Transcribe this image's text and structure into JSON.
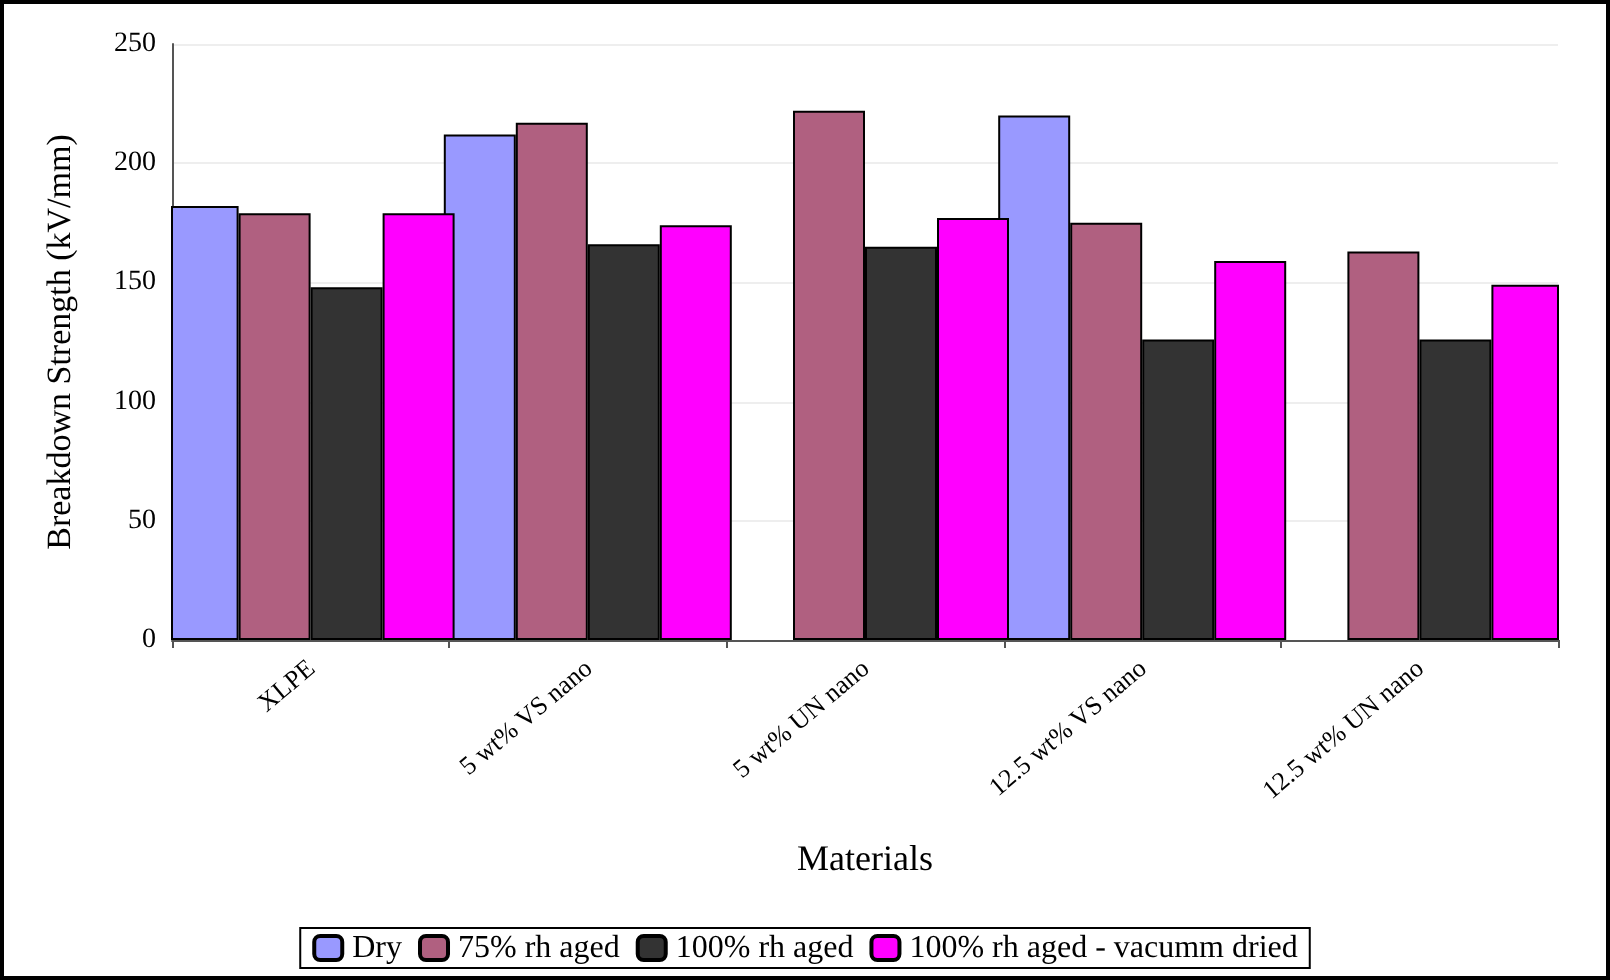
{
  "chart_data": {
    "type": "bar",
    "xlabel": "Materials",
    "ylabel": "Breakdown Strength (kV/mm)",
    "categories": [
      "XLPE",
      "5 wt% VS nano",
      "5 wt% UN nano",
      "12.5 wt% VS nano",
      "12.5 wt% UN nano"
    ],
    "series": [
      {
        "name": "Dry",
        "color": "#9999ff",
        "values": [
          182,
          212,
          null,
          220,
          null
        ]
      },
      {
        "name": "75% rh aged",
        "color": "#b06080",
        "values": [
          179,
          217,
          222,
          175,
          163
        ]
      },
      {
        "name": "100% rh aged",
        "color": "#333333",
        "values": [
          148,
          166,
          165,
          126,
          126
        ]
      },
      {
        "name": "100% rh aged - vacumm dried",
        "color": "#ff00ff",
        "values": [
          179,
          174,
          177,
          159,
          149
        ]
      }
    ],
    "ylim": [
      0,
      250
    ],
    "yticks": [
      0,
      50,
      100,
      150,
      200,
      250
    ],
    "grid": "y",
    "legend": "bottom"
  }
}
